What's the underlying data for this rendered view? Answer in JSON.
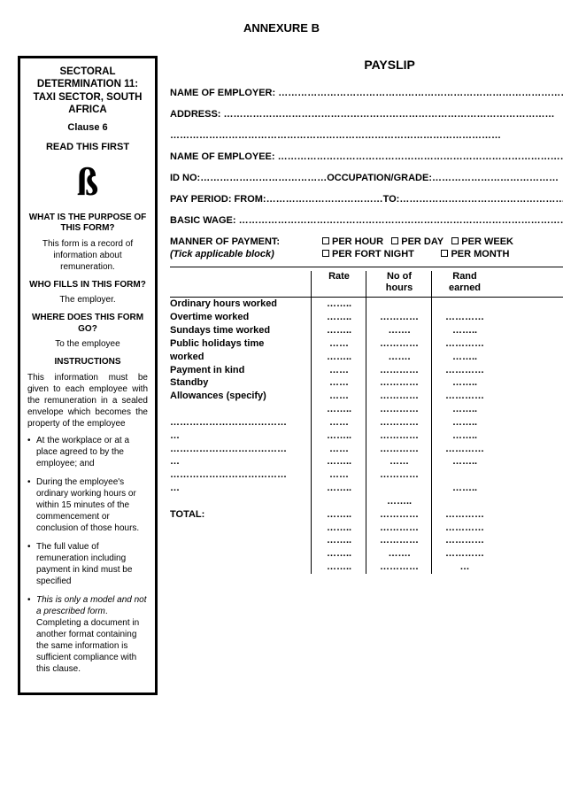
{
  "annexure": "ANNEXURE B",
  "sidebar": {
    "title": "SECTORAL DETERMINATION 11: TAXI SECTOR, SOUTH AFRICA",
    "clause": "Clause 6",
    "read_first": "READ THIS FIRST",
    "glyph": "ß",
    "q_purpose": "WHAT IS THE PURPOSE OF THIS FORM?",
    "a_purpose": "This form is a record of information about remuneration.",
    "q_who": "WHO FILLS IN THIS FORM?",
    "a_who": "The employer.",
    "q_where": "WHERE DOES THIS FORM GO?",
    "a_where": "To the employee",
    "instructions_h": "INSTRUCTIONS",
    "instructions_intro": "This information must be given to each employee with the remuneration in a sealed envelope which becomes the property of the employee",
    "bullets": [
      "At the workplace or at a place agreed to by the employee; and",
      "During the employee's ordinary working hours or within 15 minutes of the commencement or conclusion of those hours.",
      "The full value of remuneration including payment in kind must be specified",
      "This is only a model and not a prescribed form. Completing a document in another format containing the same information is sufficient compliance with this clause."
    ]
  },
  "main": {
    "title": "PAYSLIP",
    "fields": {
      "employer": "NAME OF EMPLOYER: ",
      "address": "ADDRESS: ",
      "employee": "NAME OF EMPLOYEE: ",
      "id_no": "ID NO:",
      "occupation": "OCCUPATION/GRADE:",
      "pay_period": "PAY PERIOD:  FROM:",
      "to": "TO:",
      "basic_wage": "BASIC WAGE: "
    },
    "mop": {
      "label": "MANNER OF PAYMENT:",
      "sub": "(Tick applicable block)",
      "opts": [
        "PER HOUR",
        "PER DAY",
        "PER WEEK",
        "PER FORT NIGHT",
        "PER MONTH"
      ]
    },
    "table": {
      "headers": {
        "rate": "Rate",
        "hours": "No of\nhours",
        "rand": "Rand\nearned"
      },
      "rows": [
        "Ordinary hours worked",
        "Overtime worked",
        "Sundays time worked",
        "Public holidays time",
        "worked",
        "Payment in kind",
        "Standby",
        "Allowances (specify)",
        "",
        "………………………………",
        "…",
        "………………………………",
        "…",
        "………………………………",
        "…",
        "",
        "TOTAL:"
      ],
      "dots_short": "……..",
      "dots_med": "…………",
      "dots_med2": "……….",
      "dots_ellipsis": "…"
    }
  },
  "long_dots": "…………………………………………………………………………………………"
}
